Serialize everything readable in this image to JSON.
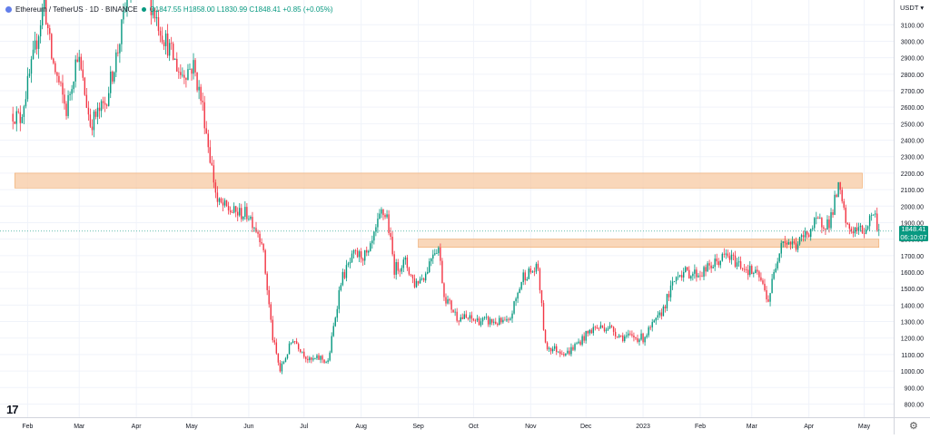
{
  "legend": {
    "symbol": "Ethereum / TetherUS · 1D · BINANCE",
    "ohlc": "O1847.55 H1858.00 L1830.99 C1848.41 +0.85 (+0.05%)"
  },
  "axis": {
    "currency": "USDT",
    "current_price": "1848.41",
    "countdown": "06:10:07"
  },
  "icons": {
    "logo": "tradingview-logo-icon",
    "settings": "gear-icon",
    "currency_menu": "chevron-down-icon"
  },
  "colors": {
    "up": "#089981",
    "down": "#f23645",
    "zone": "#f7c9a3",
    "grid": "#f0f3fa"
  },
  "chart_data": {
    "type": "candlestick",
    "y_ticks": [
      "3100.00",
      "3000.00",
      "2900.00",
      "2800.00",
      "2700.00",
      "2600.00",
      "2500.00",
      "2400.00",
      "2300.00",
      "2200.00",
      "2100.00",
      "2000.00",
      "1900.00",
      "1800.00",
      "1700.00",
      "1600.00",
      "1500.00",
      "1400.00",
      "1300.00",
      "1200.00",
      "1100.00",
      "1000.00",
      "900.00",
      "800.00"
    ],
    "x_labels": [
      "Feb",
      "Mar",
      "Apr",
      "May",
      "Jun",
      "Jul",
      "Aug",
      "Sep",
      "Oct",
      "Nov",
      "Dec",
      "2023",
      "Feb",
      "Mar",
      "Apr",
      "May"
    ],
    "ylim": [
      720,
      3250
    ],
    "zones": [
      {
        "from": "2022-01-25",
        "to": "2023-04-30",
        "low": 2110,
        "high": 2200
      },
      {
        "from": "2022-09-01",
        "to": "2023-05-09",
        "low": 1750,
        "high": 1800
      }
    ],
    "close_path": [
      [
        "2022-01-24",
        2560
      ],
      [
        "2022-01-28",
        2530
      ],
      [
        "2022-02-04",
        2890
      ],
      [
        "2022-02-10",
        3240
      ],
      [
        "2022-02-14",
        2900
      ],
      [
        "2022-02-22",
        2580
      ],
      [
        "2022-02-28",
        2930
      ],
      [
        "2022-03-07",
        2500
      ],
      [
        "2022-03-15",
        2620
      ],
      [
        "2022-03-22",
        2950
      ],
      [
        "2022-03-28",
        3320
      ],
      [
        "2022-04-02",
        3480
      ],
      [
        "2022-04-08",
        3260
      ],
      [
        "2022-04-15",
        3050
      ],
      [
        "2022-04-25",
        2800
      ],
      [
        "2022-05-02",
        2850
      ],
      [
        "2022-05-07",
        2600
      ],
      [
        "2022-05-11",
        2300
      ],
      [
        "2022-05-15",
        2020
      ],
      [
        "2022-05-24",
        1960
      ],
      [
        "2022-06-01",
        1950
      ],
      [
        "2022-06-08",
        1800
      ],
      [
        "2022-06-14",
        1200
      ],
      [
        "2022-06-18",
        1000
      ],
      [
        "2022-06-25",
        1200
      ],
      [
        "2022-07-04",
        1060
      ],
      [
        "2022-07-10",
        1080
      ],
      [
        "2022-07-14",
        1050
      ],
      [
        "2022-07-21",
        1550
      ],
      [
        "2022-07-28",
        1700
      ],
      [
        "2022-08-05",
        1700
      ],
      [
        "2022-08-12",
        1960
      ],
      [
        "2022-08-15",
        1940
      ],
      [
        "2022-08-19",
        1620
      ],
      [
        "2022-08-25",
        1660
      ],
      [
        "2022-08-30",
        1530
      ],
      [
        "2022-09-05",
        1590
      ],
      [
        "2022-09-09",
        1730
      ],
      [
        "2022-09-12",
        1750
      ],
      [
        "2022-09-15",
        1460
      ],
      [
        "2022-09-22",
        1330
      ],
      [
        "2022-10-01",
        1310
      ],
      [
        "2022-10-10",
        1300
      ],
      [
        "2022-10-20",
        1290
      ],
      [
        "2022-10-28",
        1580
      ],
      [
        "2022-11-05",
        1620
      ],
      [
        "2022-11-09",
        1150
      ],
      [
        "2022-11-21",
        1110
      ],
      [
        "2022-12-05",
        1260
      ],
      [
        "2022-12-13",
        1270
      ],
      [
        "2022-12-20",
        1210
      ],
      [
        "2023-01-01",
        1200
      ],
      [
        "2023-01-10",
        1330
      ],
      [
        "2023-01-20",
        1600
      ],
      [
        "2023-02-01",
        1590
      ],
      [
        "2023-02-15",
        1700
      ],
      [
        "2023-02-25",
        1630
      ],
      [
        "2023-03-05",
        1570
      ],
      [
        "2023-03-10",
        1430
      ],
      [
        "2023-03-17",
        1800
      ],
      [
        "2023-03-25",
        1760
      ],
      [
        "2023-04-05",
        1900
      ],
      [
        "2023-04-12",
        1900
      ],
      [
        "2023-04-17",
        2110
      ],
      [
        "2023-04-22",
        1860
      ],
      [
        "2023-05-01",
        1850
      ],
      [
        "2023-05-06",
        1970
      ],
      [
        "2023-05-09",
        1848.41
      ]
    ]
  }
}
